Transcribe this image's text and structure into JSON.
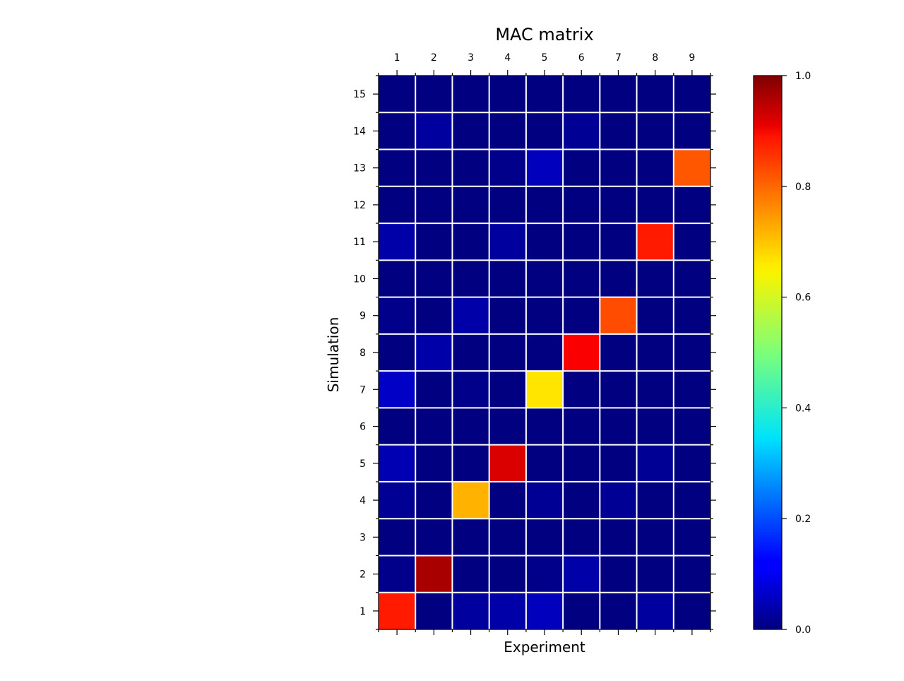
{
  "chart_data": {
    "type": "heatmap",
    "title": "MAC matrix",
    "xlabel": "Experiment",
    "ylabel": "Simulation",
    "x_categories": [
      "1",
      "2",
      "3",
      "4",
      "5",
      "6",
      "7",
      "8",
      "9"
    ],
    "y_categories": [
      "1",
      "2",
      "3",
      "4",
      "5",
      "6",
      "7",
      "8",
      "9",
      "10",
      "11",
      "12",
      "13",
      "14",
      "15"
    ],
    "colormap": "jet",
    "clim": [
      0.0,
      1.0
    ],
    "colorbar_ticks": [
      "0.0",
      "0.2",
      "0.4",
      "0.6",
      "0.8",
      "1.0"
    ],
    "grid_color": "#ffffff",
    "values": [
      [
        0.85,
        0.0,
        0.03,
        0.04,
        0.06,
        0.0,
        0.0,
        0.03,
        0.0
      ],
      [
        0.01,
        0.96,
        0.0,
        0.0,
        0.01,
        0.04,
        0.0,
        0.0,
        0.0
      ],
      [
        0.0,
        0.0,
        0.0,
        0.0,
        0.0,
        0.0,
        0.0,
        0.0,
        0.0
      ],
      [
        0.02,
        0.0,
        0.7,
        0.0,
        0.02,
        0.0,
        0.02,
        0.0,
        0.0
      ],
      [
        0.05,
        0.0,
        0.0,
        0.91,
        0.0,
        0.0,
        0.0,
        0.02,
        0.0
      ],
      [
        0.0,
        0.0,
        0.0,
        0.0,
        0.0,
        0.0,
        0.0,
        0.0,
        0.0
      ],
      [
        0.07,
        0.0,
        0.01,
        0.0,
        0.65,
        0.0,
        0.0,
        0.0,
        0.0
      ],
      [
        0.0,
        0.04,
        0.0,
        0.0,
        0.0,
        0.88,
        0.0,
        0.0,
        0.0
      ],
      [
        0.01,
        0.0,
        0.04,
        0.0,
        0.0,
        0.0,
        0.8,
        0.0,
        0.0
      ],
      [
        0.0,
        0.0,
        0.0,
        0.0,
        0.0,
        0.0,
        0.0,
        0.0,
        0.0
      ],
      [
        0.04,
        0.0,
        0.0,
        0.03,
        0.0,
        0.0,
        0.0,
        0.85,
        0.0
      ],
      [
        0.0,
        0.0,
        0.0,
        0.0,
        0.0,
        0.0,
        0.0,
        0.0,
        0.0
      ],
      [
        0.0,
        0.0,
        0.0,
        0.01,
        0.06,
        0.0,
        0.0,
        0.0,
        0.79
      ],
      [
        0.0,
        0.03,
        0.0,
        0.0,
        0.0,
        0.02,
        0.0,
        0.0,
        0.0
      ],
      [
        0.0,
        0.0,
        0.0,
        0.0,
        0.0,
        0.0,
        0.0,
        0.0,
        0.0
      ]
    ]
  }
}
